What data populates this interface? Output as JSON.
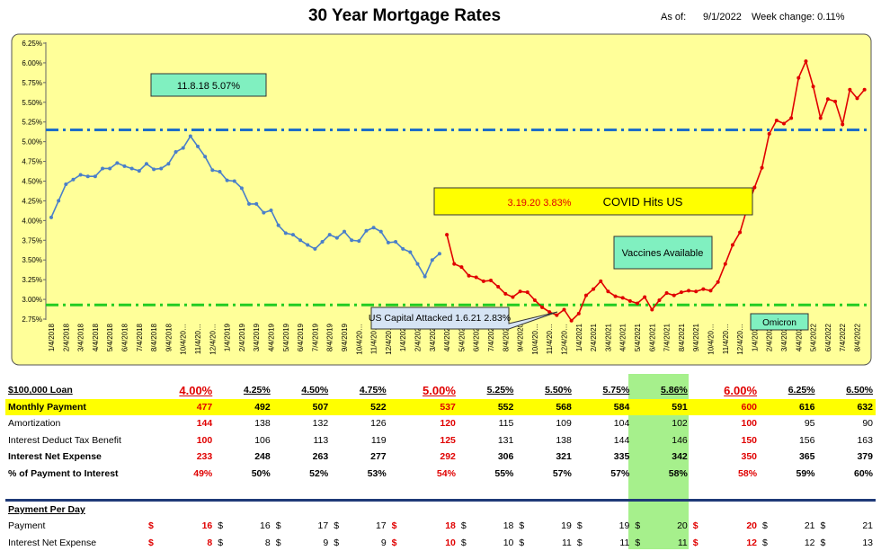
{
  "header": {
    "title": "30 Year Mortgage Rates",
    "asof_label": "As of:",
    "asof_date": "9/1/2022",
    "week_change": "Week change:  0.11%"
  },
  "chart_data": {
    "type": "line",
    "ylim": [
      2.75,
      6.25
    ],
    "yticks": [
      "6.25%",
      "6.00%",
      "5.75%",
      "5.50%",
      "5.25%",
      "5.00%",
      "4.75%",
      "4.50%",
      "4.25%",
      "4.00%",
      "3.75%",
      "3.50%",
      "3.25%",
      "3.00%",
      "2.75%"
    ],
    "ytick_values": [
      6.25,
      6.0,
      5.75,
      5.5,
      5.25,
      5.0,
      4.75,
      4.5,
      4.25,
      4.0,
      3.75,
      3.5,
      3.25,
      3.0,
      2.75
    ],
    "xticks": [
      "1/4/2018",
      "2/4/2018",
      "3/4/2018",
      "4/4/2018",
      "5/4/2018",
      "6/4/2018",
      "7/4/2018",
      "8/4/2018",
      "9/4/2018",
      "10/4/20…",
      "11/4/20…",
      "12/4/20…",
      "1/4/2019",
      "2/4/2019",
      "3/4/2019",
      "4/4/2019",
      "5/4/2019",
      "6/4/2019",
      "7/4/2019",
      "8/4/2019",
      "9/4/2019",
      "10/4/20…",
      "11/4/20…",
      "12/4/20…",
      "1/4/2020",
      "2/4/2020",
      "3/4/2020",
      "4/4/2020",
      "5/4/2020",
      "6/4/2020",
      "7/4/2020",
      "8/4/2020",
      "9/4/2020",
      "10/4/20…",
      "11/4/20…",
      "12/4/20…",
      "1/4/2021",
      "2/4/2021",
      "3/4/2021",
      "4/4/2021",
      "5/4/2021",
      "6/4/2021",
      "7/4/2021",
      "8/4/2021",
      "9/4/2021",
      "10/4/20…",
      "11/4/20…",
      "12/4/20…",
      "1/4/2022",
      "2/4/2022",
      "3/4/2022",
      "4/4/2022",
      "5/4/2022",
      "6/4/2022",
      "7/4/2022",
      "8/4/2022"
    ],
    "series": [
      {
        "name": "blue",
        "color": "#4a7fc9",
        "x": [
          0,
          0.5,
          1,
          1.5,
          2,
          2.5,
          3,
          3.5,
          4,
          4.5,
          5,
          5.5,
          6,
          6.5,
          7,
          7.5,
          8,
          8.5,
          9,
          9.5,
          10,
          10.5,
          11,
          11.5,
          12,
          12.5,
          13,
          13.5,
          14,
          14.5,
          15,
          15.5,
          16,
          16.5,
          17,
          17.5,
          18,
          18.5,
          19,
          19.5,
          20,
          20.5,
          21,
          21.5,
          22,
          22.5,
          23,
          23.5,
          24,
          24.5,
          25,
          25.5,
          26,
          26.5
        ],
        "y": [
          4.04,
          4.25,
          4.46,
          4.52,
          4.58,
          4.56,
          4.56,
          4.66,
          4.66,
          4.73,
          4.69,
          4.66,
          4.63,
          4.72,
          4.65,
          4.66,
          4.72,
          4.87,
          4.92,
          5.07,
          4.94,
          4.81,
          4.64,
          4.62,
          4.51,
          4.5,
          4.41,
          4.21,
          4.21,
          4.1,
          4.13,
          3.94,
          3.84,
          3.82,
          3.75,
          3.69,
          3.64,
          3.73,
          3.82,
          3.78,
          3.86,
          3.75,
          3.74,
          3.87,
          3.91,
          3.86,
          3.72,
          3.73,
          3.64,
          3.6,
          3.45,
          3.29,
          3.5,
          3.58
        ]
      },
      {
        "name": "red",
        "color": "#e00000",
        "x": [
          27,
          27.5,
          28,
          28.5,
          29,
          29.5,
          30,
          30.5,
          31,
          31.5,
          32,
          32.5,
          33,
          33.5,
          34,
          34.5,
          35,
          35.5,
          36,
          36.5,
          37,
          37.5,
          38,
          38.5,
          39,
          39.5,
          40,
          40.5,
          41,
          41.5,
          42,
          42.5,
          43,
          43.5,
          44,
          44.5,
          45,
          45.5,
          46,
          46.5,
          47,
          47.5,
          48,
          48.5,
          49,
          49.5,
          50,
          50.5,
          51,
          51.5,
          52,
          52.5,
          53,
          53.5,
          54,
          54.5,
          55,
          55.5
        ],
        "y": [
          3.82,
          3.45,
          3.41,
          3.3,
          3.28,
          3.23,
          3.24,
          3.16,
          3.07,
          3.03,
          3.1,
          3.09,
          2.99,
          2.9,
          2.84,
          2.8,
          2.87,
          2.73,
          2.82,
          3.05,
          3.13,
          3.23,
          3.1,
          3.04,
          3.02,
          2.98,
          2.95,
          3.03,
          2.87,
          2.99,
          3.08,
          3.05,
          3.09,
          3.11,
          3.1,
          3.13,
          3.11,
          3.22,
          3.45,
          3.69,
          3.85,
          4.16,
          4.42,
          4.67,
          5.1,
          5.27,
          5.23,
          5.3,
          5.81,
          6.02,
          5.7,
          5.3,
          5.54,
          5.51,
          5.22,
          5.66,
          5.55,
          5.66
        ]
      }
    ],
    "reference_lines": [
      {
        "value": 5.15,
        "color": "#1f6fc8"
      },
      {
        "value": 2.93,
        "color": "#22cc22"
      }
    ]
  },
  "annotations": {
    "peak": "11.8.18   5.07%",
    "covid_date": "3.19.20  3.83%",
    "covid_label": "COVID Hits US",
    "vaccines": "Vaccines Available",
    "capitol": "US Capital Attacked 1.6.21 2.83%",
    "omicron": "Omicron"
  },
  "table": {
    "header": {
      "label": "$100,000 Loan",
      "cols": [
        "4.00%",
        "4.25%",
        "4.50%",
        "4.75%",
        "5.00%",
        "5.25%",
        "5.50%",
        "5.75%",
        "5.86%",
        "6.00%",
        "6.25%",
        "6.50%"
      ]
    },
    "monthly": {
      "label": "Monthly Payment",
      "cols": [
        "477",
        "492",
        "507",
        "522",
        "537",
        "552",
        "568",
        "584",
        "591",
        "600",
        "616",
        "632"
      ]
    },
    "amort": {
      "label": "Amortization",
      "cols": [
        "144",
        "138",
        "132",
        "126",
        "120",
        "115",
        "109",
        "104",
        "102",
        "100",
        "95",
        "90"
      ]
    },
    "benefit": {
      "label": "Interest Deduct Tax Benefit",
      "cols": [
        "100",
        "106",
        "113",
        "119",
        "125",
        "131",
        "138",
        "144",
        "146",
        "150",
        "156",
        "163"
      ]
    },
    "net": {
      "label": "Interest Net Expense",
      "cols": [
        "233",
        "248",
        "263",
        "277",
        "292",
        "306",
        "321",
        "335",
        "342",
        "350",
        "365",
        "379"
      ]
    },
    "pct": {
      "label": "% of Payment to Interest",
      "cols": [
        "49%",
        "50%",
        "52%",
        "53%",
        "54%",
        "55%",
        "57%",
        "57%",
        "58%",
        "58%",
        "59%",
        "60%"
      ]
    },
    "perday_label": "Payment Per Day",
    "dollar": "$",
    "daypay": {
      "label": "Payment",
      "cols": [
        "16",
        "16",
        "17",
        "17",
        "18",
        "18",
        "19",
        "19",
        "20",
        "20",
        "21",
        "21"
      ]
    },
    "daynet": {
      "label": "Interest Net Expense",
      "cols": [
        "8",
        "8",
        "9",
        "9",
        "10",
        "10",
        "11",
        "11",
        "11",
        "12",
        "12",
        "13"
      ]
    }
  }
}
